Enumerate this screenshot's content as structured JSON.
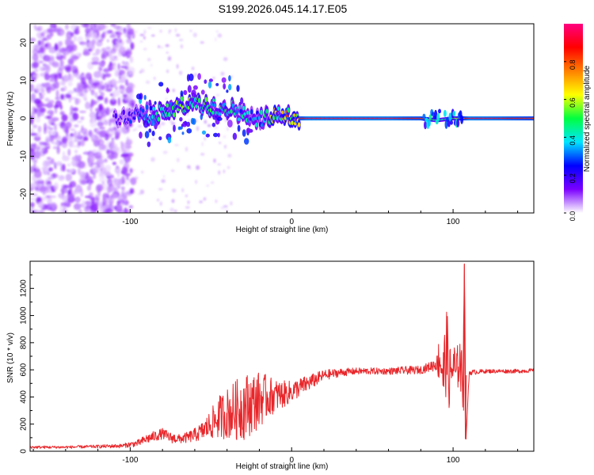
{
  "title": "S199.2026.045.14.17.E05",
  "chart_data": [
    {
      "type": "heatmap",
      "title": "",
      "xlabel": "Height of straight line (km)",
      "ylabel": "Frequency (Hz)",
      "xlim": [
        -162,
        150
      ],
      "ylim": [
        -25,
        25
      ],
      "xticks": [
        -100,
        0,
        100
      ],
      "xtick_labels": [
        "-100",
        "0",
        "100"
      ],
      "yticks": [
        -20,
        -10,
        0,
        10,
        20
      ],
      "ytick_labels": [
        "-20",
        "-10",
        "0",
        "10",
        "20"
      ],
      "colorbar": {
        "label": "Normalized spectral amplitude",
        "range": [
          0,
          1
        ],
        "ticks": [
          0.0,
          0.2,
          0.4,
          0.6,
          0.8
        ],
        "tick_labels": [
          "0.0",
          "0.2",
          "0.4",
          "0.6",
          "0.8"
        ],
        "colors": [
          "#ffffff",
          "#7b00ff",
          "#0000ff",
          "#00e5ff",
          "#00ff40",
          "#ffff00",
          "#ff8000",
          "#ff0000",
          "#ff0080"
        ]
      },
      "features": {
        "noise_region_km": [
          -162,
          -98
        ],
        "transition_region_km": [
          -98,
          5
        ],
        "steady_line_km": [
          5,
          150
        ],
        "steady_line_freq_hz": 0,
        "disturbance_km": [
          [
            82,
            92
          ],
          [
            95,
            106
          ]
        ]
      },
      "ridge": {
        "x": [
          -110,
          -100,
          -90,
          -80,
          -70,
          -60,
          -50,
          -40,
          -30,
          -20,
          -10,
          0,
          10,
          20,
          40,
          60,
          80,
          90,
          100,
          110,
          130,
          150
        ],
        "freq": [
          0,
          0.5,
          1,
          1.5,
          3,
          4,
          3,
          3,
          1,
          -0.5,
          1.5,
          0,
          0,
          0,
          0,
          0,
          0,
          -0.5,
          0,
          0,
          0,
          0
        ],
        "amplitude": [
          0.15,
          0.25,
          0.35,
          0.45,
          0.5,
          0.55,
          0.55,
          0.5,
          0.4,
          0.35,
          0.6,
          0.75,
          0.92,
          0.92,
          0.92,
          0.92,
          0.85,
          0.4,
          0.5,
          0.92,
          0.9,
          0.82
        ]
      }
    },
    {
      "type": "line",
      "title": "",
      "xlabel": "Height of straight line (km)",
      "ylabel": "SNR (10 * v/v)",
      "xlim": [
        -162,
        150
      ],
      "ylim": [
        0,
        1400
      ],
      "xticks": [
        -100,
        0,
        100
      ],
      "xtick_labels": [
        "-100",
        "0",
        "100"
      ],
      "yticks": [
        0,
        200,
        400,
        600,
        800,
        1000,
        1200
      ],
      "ytick_labels": [
        "0",
        "200",
        "400",
        "600",
        "800",
        "1000",
        "1200"
      ],
      "series": [
        {
          "name": "SNR",
          "color": "#e8262a",
          "x": [
            -162,
            -140,
            -120,
            -105,
            -95,
            -90,
            -85,
            -80,
            -75,
            -70,
            -65,
            -60,
            -55,
            -50,
            -45,
            -40,
            -35,
            -30,
            -25,
            -20,
            -15,
            -10,
            -5,
            0,
            5,
            10,
            15,
            20,
            25,
            30,
            40,
            50,
            60,
            70,
            80,
            85,
            90,
            92,
            94,
            96,
            98,
            100,
            102,
            104,
            106,
            107,
            108,
            110,
            120,
            130,
            140,
            150
          ],
          "y": [
            30,
            30,
            35,
            40,
            60,
            90,
            110,
            130,
            100,
            90,
            100,
            120,
            150,
            200,
            250,
            280,
            300,
            330,
            350,
            380,
            400,
            410,
            420,
            440,
            470,
            500,
            530,
            560,
            570,
            580,
            590,
            590,
            590,
            595,
            600,
            620,
            650,
            700,
            560,
            750,
            520,
            650,
            560,
            700,
            450,
            1380,
            90,
            580,
            590,
            590,
            590,
            595
          ],
          "spread": [
            10,
            10,
            12,
            15,
            25,
            35,
            40,
            40,
            40,
            35,
            40,
            50,
            70,
            110,
            160,
            190,
            220,
            250,
            230,
            210,
            160,
            120,
            100,
            80,
            70,
            60,
            50,
            40,
            35,
            30,
            25,
            25,
            25,
            30,
            30,
            35,
            60,
            260,
            260,
            320,
            260,
            220,
            160,
            200,
            220,
            0,
            0,
            20,
            15,
            15,
            15,
            15
          ]
        }
      ]
    }
  ]
}
